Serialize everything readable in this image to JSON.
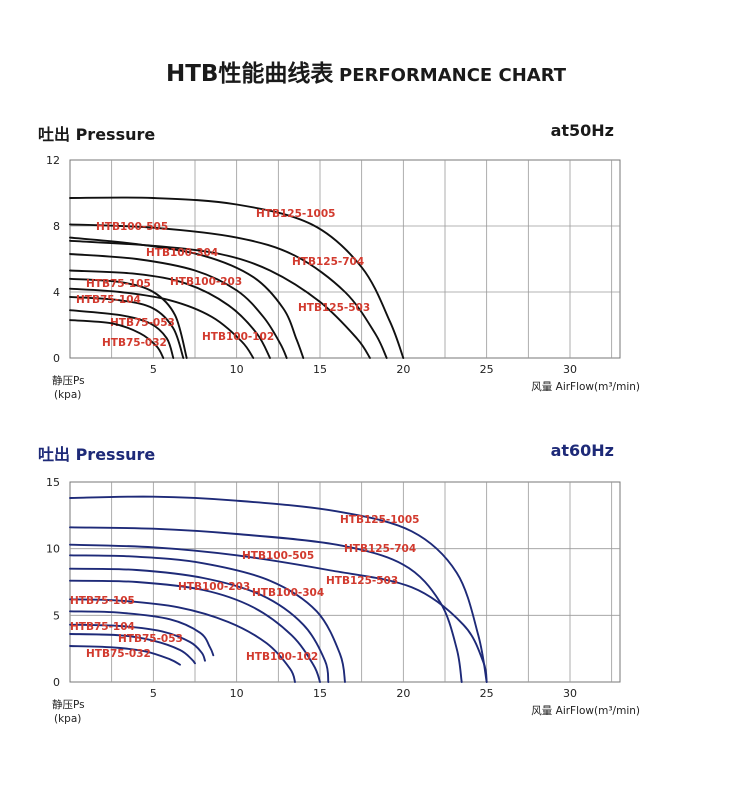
{
  "header": {
    "title_cn": "HTB性能曲线表",
    "title_en": "PERFORMANCE CHART"
  },
  "colors": {
    "curve_50hz": "#111111",
    "curve_60hz": "#1e2a78",
    "label": "#d23a2e",
    "grid": "#9a9a9a",
    "title_60hz": "#1e2a78"
  },
  "chart_data": [
    {
      "type": "line",
      "title": "吐出 Pressure",
      "frequency": "at50Hz",
      "ylabel": "静压Ps",
      "yunit": "(kpa)",
      "xlabel": "风量 AirFlow(m³/min)",
      "xlim": [
        0,
        33
      ],
      "ylim": [
        0,
        12
      ],
      "xticks": [
        5,
        10,
        15,
        20,
        25,
        30
      ],
      "yticks": [
        0,
        4,
        8,
        12
      ],
      "grid": true,
      "series": [
        {
          "name": "HTB125-1005",
          "x": [
            0,
            5,
            10,
            14.5,
            17.5,
            19.2,
            20
          ],
          "y": [
            9.7,
            9.7,
            9.3,
            8.1,
            5.5,
            2.2,
            0
          ]
        },
        {
          "name": "HTB125-704",
          "x": [
            0,
            5,
            10,
            13.5,
            16.5,
            18.3,
            19
          ],
          "y": [
            8.1,
            7.9,
            7.3,
            6.2,
            4.0,
            1.5,
            0
          ]
        },
        {
          "name": "HTB125-503",
          "x": [
            0,
            5,
            9,
            12,
            15,
            17.2,
            18
          ],
          "y": [
            7.1,
            6.8,
            6.3,
            5.3,
            3.4,
            1.2,
            0
          ]
        },
        {
          "name": "HTB100-505",
          "x": [
            0,
            4,
            8,
            11,
            12.8,
            13.6,
            14
          ],
          "y": [
            7.3,
            6.9,
            6.2,
            4.9,
            3.0,
            1.1,
            0
          ]
        },
        {
          "name": "HTB100-304",
          "x": [
            0,
            4,
            7.5,
            10,
            11.6,
            12.6,
            13
          ],
          "y": [
            6.3,
            6.0,
            5.3,
            4.1,
            2.5,
            0.9,
            0
          ]
        },
        {
          "name": "HTB100-203",
          "x": [
            0,
            4,
            7,
            9.5,
            11.2,
            12
          ],
          "y": [
            5.3,
            5.1,
            4.5,
            3.2,
            1.5,
            0
          ]
        },
        {
          "name": "HTB100-102",
          "x": [
            0,
            3,
            6,
            8.5,
            10.3,
            11
          ],
          "y": [
            4.2,
            4.0,
            3.5,
            2.5,
            1.0,
            0
          ]
        },
        {
          "name": "HTB75-105",
          "x": [
            0,
            3,
            5,
            6.3,
            7
          ],
          "y": [
            4.8,
            4.6,
            4.0,
            2.6,
            0
          ]
        },
        {
          "name": "HTB75-104",
          "x": [
            0,
            3,
            5,
            6.2,
            6.8
          ],
          "y": [
            3.7,
            3.5,
            3.0,
            1.8,
            0
          ]
        },
        {
          "name": "HTB75-053",
          "x": [
            0,
            3,
            4.8,
            5.8,
            6.2
          ],
          "y": [
            2.9,
            2.6,
            2.1,
            1.2,
            0
          ]
        },
        {
          "name": "HTB75-032",
          "x": [
            0,
            2.5,
            4.2,
            5.2,
            5.6
          ],
          "y": [
            2.3,
            2.1,
            1.5,
            0.7,
            0
          ]
        }
      ]
    },
    {
      "type": "line",
      "title": "吐出 Pressure",
      "frequency": "at60Hz",
      "ylabel": "静压Ps",
      "yunit": "(kpa)",
      "xlabel": "风量 AirFlow(m³/min)",
      "xlim": [
        0,
        33
      ],
      "ylim": [
        0,
        15
      ],
      "xticks": [
        5,
        10,
        15,
        20,
        25,
        30
      ],
      "yticks": [
        0,
        5,
        10,
        15
      ],
      "grid": true,
      "series": [
        {
          "name": "HTB125-1005",
          "x": [
            0,
            5,
            10,
            16,
            20.5,
            23.2,
            24.5,
            25
          ],
          "y": [
            13.8,
            13.9,
            13.6,
            12.8,
            11.3,
            8.2,
            3.5,
            0
          ]
        },
        {
          "name": "HTB125-704",
          "x": [
            0,
            5,
            10,
            16,
            20,
            22.2,
            23.2,
            23.5
          ],
          "y": [
            11.6,
            11.5,
            11.1,
            10.3,
            8.8,
            6.0,
            2.5,
            0
          ]
        },
        {
          "name": "HTB125-503",
          "x": [
            0,
            5,
            10,
            15.5,
            20.5,
            23.6,
            24.8,
            25
          ],
          "y": [
            10.3,
            10.1,
            9.5,
            8.4,
            7.1,
            4.3,
            1.5,
            0
          ]
        },
        {
          "name": "HTB100-505",
          "x": [
            0,
            4,
            8,
            12,
            14.8,
            16.2,
            16.5
          ],
          "y": [
            9.5,
            9.4,
            8.9,
            7.6,
            5.3,
            2.1,
            0
          ]
        },
        {
          "name": "HTB100-304",
          "x": [
            0,
            4,
            8,
            11.5,
            14,
            15.3,
            15.5
          ],
          "y": [
            8.5,
            8.4,
            7.8,
            6.5,
            4.3,
            1.6,
            0
          ]
        },
        {
          "name": "HTB100-203",
          "x": [
            0,
            4,
            8,
            11,
            13.3,
            14.6,
            15
          ],
          "y": [
            7.6,
            7.5,
            6.9,
            5.6,
            3.5,
            1.3,
            0
          ]
        },
        {
          "name": "HTB100-102",
          "x": [
            0,
            3,
            6.5,
            9.5,
            11.8,
            13.2,
            13.5
          ],
          "y": [
            6.2,
            6.1,
            5.6,
            4.5,
            2.9,
            1.0,
            0
          ]
        },
        {
          "name": "HTB75-105",
          "x": [
            0,
            3,
            6,
            7.8,
            8.4,
            8.6
          ],
          "y": [
            5.3,
            5.2,
            4.7,
            3.7,
            2.6,
            2.0
          ]
        },
        {
          "name": "HTB75-104",
          "x": [
            0,
            3,
            5.5,
            7.2,
            7.9,
            8.1
          ],
          "y": [
            4.3,
            4.2,
            3.8,
            3.0,
            2.2,
            1.6
          ]
        },
        {
          "name": "HTB75-053",
          "x": [
            0,
            3,
            5,
            6.6,
            7.3,
            7.5
          ],
          "y": [
            3.6,
            3.5,
            3.1,
            2.4,
            1.7,
            1.4
          ]
        },
        {
          "name": "HTB75-032",
          "x": [
            0,
            2.5,
            4.5,
            6,
            6.6
          ],
          "y": [
            2.7,
            2.6,
            2.3,
            1.7,
            1.3
          ]
        }
      ]
    }
  ]
}
